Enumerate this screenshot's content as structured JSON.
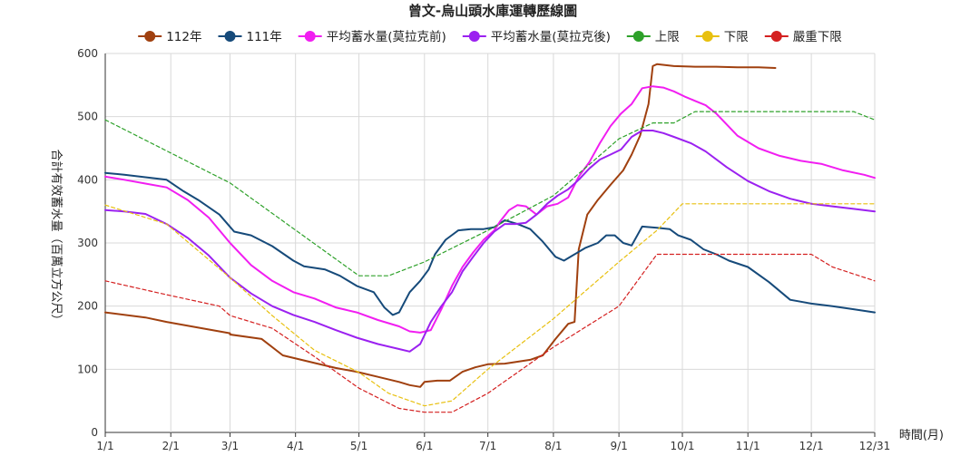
{
  "chart_data": {
    "type": "line",
    "title": "曾文-烏山頭水庫運轉歷線圖",
    "ylabel": "合計有效蓄水量（百萬立方公尺）",
    "xlabel": "時間(月)",
    "ylim": [
      0,
      600
    ],
    "yticks": [
      0,
      100,
      200,
      300,
      400,
      500,
      600
    ],
    "xlim": [
      1,
      365
    ],
    "xticks": [
      {
        "label": "1/1",
        "day": 1
      },
      {
        "label": "2/1",
        "day": 32
      },
      {
        "label": "3/1",
        "day": 60
      },
      {
        "label": "4/1",
        "day": 91
      },
      {
        "label": "5/1",
        "day": 121
      },
      {
        "label": "6/1",
        "day": 152
      },
      {
        "label": "7/1",
        "day": 182
      },
      {
        "label": "8/1",
        "day": 213
      },
      {
        "label": "9/1",
        "day": 244
      },
      {
        "label": "10/1",
        "day": 274
      },
      {
        "label": "11/1",
        "day": 305
      },
      {
        "label": "12/1",
        "day": 335
      },
      {
        "label": "12/31",
        "day": 365
      }
    ],
    "grid": true,
    "legend_position": "top",
    "series": [
      {
        "name": "112年",
        "color": "#a0400f",
        "style": "solid",
        "width": 2,
        "points": [
          [
            1,
            190
          ],
          [
            20,
            182
          ],
          [
            30,
            175
          ],
          [
            45,
            166
          ],
          [
            60,
            157
          ],
          [
            60,
            155
          ],
          [
            75,
            148
          ],
          [
            85,
            122
          ],
          [
            100,
            110
          ],
          [
            110,
            102
          ],
          [
            120,
            96
          ],
          [
            130,
            88
          ],
          [
            140,
            80
          ],
          [
            145,
            75
          ],
          [
            150,
            72
          ],
          [
            152,
            80
          ],
          [
            158,
            82
          ],
          [
            164,
            82
          ],
          [
            170,
            96
          ],
          [
            176,
            103
          ],
          [
            182,
            108
          ],
          [
            190,
            109
          ],
          [
            196,
            112
          ],
          [
            202,
            115
          ],
          [
            208,
            122
          ],
          [
            214,
            148
          ],
          [
            220,
            172
          ],
          [
            223,
            175
          ],
          [
            225,
            290
          ],
          [
            229,
            345
          ],
          [
            234,
            368
          ],
          [
            240,
            392
          ],
          [
            246,
            415
          ],
          [
            250,
            440
          ],
          [
            254,
            470
          ],
          [
            258,
            520
          ],
          [
            260,
            580
          ],
          [
            262,
            583
          ],
          [
            270,
            580
          ],
          [
            280,
            579
          ],
          [
            290,
            579
          ],
          [
            300,
            578
          ],
          [
            310,
            578
          ],
          [
            318,
            577
          ]
        ]
      },
      {
        "name": "111年",
        "color": "#164a7a",
        "style": "solid",
        "width": 2,
        "points": [
          [
            1,
            411
          ],
          [
            10,
            408
          ],
          [
            20,
            404
          ],
          [
            30,
            400
          ],
          [
            38,
            382
          ],
          [
            45,
            368
          ],
          [
            55,
            345
          ],
          [
            62,
            318
          ],
          [
            70,
            312
          ],
          [
            80,
            295
          ],
          [
            90,
            272
          ],
          [
            95,
            263
          ],
          [
            105,
            258
          ],
          [
            112,
            248
          ],
          [
            120,
            232
          ],
          [
            128,
            222
          ],
          [
            133,
            198
          ],
          [
            137,
            186
          ],
          [
            140,
            190
          ],
          [
            145,
            222
          ],
          [
            150,
            240
          ],
          [
            154,
            258
          ],
          [
            157,
            282
          ],
          [
            162,
            305
          ],
          [
            168,
            320
          ],
          [
            174,
            322
          ],
          [
            180,
            322
          ],
          [
            185,
            325
          ],
          [
            190,
            336
          ],
          [
            196,
            330
          ],
          [
            202,
            322
          ],
          [
            208,
            302
          ],
          [
            214,
            278
          ],
          [
            218,
            272
          ],
          [
            222,
            280
          ],
          [
            228,
            292
          ],
          [
            234,
            300
          ],
          [
            238,
            312
          ],
          [
            242,
            312
          ],
          [
            246,
            300
          ],
          [
            250,
            296
          ],
          [
            255,
            326
          ],
          [
            262,
            324
          ],
          [
            268,
            322
          ],
          [
            272,
            312
          ],
          [
            278,
            305
          ],
          [
            284,
            290
          ],
          [
            290,
            282
          ],
          [
            296,
            272
          ],
          [
            305,
            262
          ],
          [
            315,
            238
          ],
          [
            325,
            210
          ],
          [
            335,
            204
          ],
          [
            345,
            200
          ],
          [
            355,
            195
          ],
          [
            365,
            190
          ]
        ]
      },
      {
        "name": "平均蓄水量(莫拉克前)",
        "color": "#f11ef1",
        "style": "solid",
        "width": 2,
        "points": [
          [
            1,
            405
          ],
          [
            10,
            400
          ],
          [
            20,
            394
          ],
          [
            30,
            388
          ],
          [
            40,
            368
          ],
          [
            50,
            340
          ],
          [
            60,
            300
          ],
          [
            70,
            265
          ],
          [
            80,
            240
          ],
          [
            90,
            222
          ],
          [
            100,
            212
          ],
          [
            110,
            198
          ],
          [
            120,
            190
          ],
          [
            130,
            178
          ],
          [
            140,
            168
          ],
          [
            145,
            160
          ],
          [
            150,
            158
          ],
          [
            155,
            162
          ],
          [
            160,
            195
          ],
          [
            165,
            232
          ],
          [
            170,
            262
          ],
          [
            175,
            285
          ],
          [
            180,
            305
          ],
          [
            185,
            320
          ],
          [
            188,
            335
          ],
          [
            192,
            352
          ],
          [
            196,
            360
          ],
          [
            200,
            358
          ],
          [
            205,
            345
          ],
          [
            210,
            358
          ],
          [
            215,
            362
          ],
          [
            220,
            372
          ],
          [
            225,
            405
          ],
          [
            230,
            428
          ],
          [
            235,
            458
          ],
          [
            240,
            485
          ],
          [
            245,
            505
          ],
          [
            250,
            520
          ],
          [
            255,
            545
          ],
          [
            260,
            548
          ],
          [
            265,
            546
          ],
          [
            270,
            540
          ],
          [
            275,
            532
          ],
          [
            280,
            525
          ],
          [
            285,
            518
          ],
          [
            290,
            505
          ],
          [
            300,
            470
          ],
          [
            310,
            450
          ],
          [
            320,
            438
          ],
          [
            330,
            430
          ],
          [
            340,
            425
          ],
          [
            350,
            415
          ],
          [
            360,
            408
          ],
          [
            365,
            403
          ]
        ]
      },
      {
        "name": "平均蓄水量(莫拉克後)",
        "color": "#9b21f0",
        "style": "solid",
        "width": 2,
        "points": [
          [
            1,
            352
          ],
          [
            10,
            350
          ],
          [
            20,
            346
          ],
          [
            30,
            330
          ],
          [
            40,
            308
          ],
          [
            50,
            280
          ],
          [
            60,
            245
          ],
          [
            70,
            220
          ],
          [
            80,
            200
          ],
          [
            90,
            186
          ],
          [
            100,
            175
          ],
          [
            110,
            162
          ],
          [
            120,
            150
          ],
          [
            130,
            140
          ],
          [
            140,
            132
          ],
          [
            145,
            128
          ],
          [
            150,
            140
          ],
          [
            155,
            175
          ],
          [
            160,
            200
          ],
          [
            165,
            222
          ],
          [
            170,
            255
          ],
          [
            175,
            278
          ],
          [
            180,
            300
          ],
          [
            185,
            318
          ],
          [
            190,
            330
          ],
          [
            195,
            330
          ],
          [
            200,
            332
          ],
          [
            205,
            345
          ],
          [
            210,
            362
          ],
          [
            215,
            375
          ],
          [
            220,
            385
          ],
          [
            225,
            400
          ],
          [
            230,
            418
          ],
          [
            235,
            432
          ],
          [
            240,
            440
          ],
          [
            245,
            448
          ],
          [
            250,
            468
          ],
          [
            255,
            478
          ],
          [
            260,
            478
          ],
          [
            265,
            474
          ],
          [
            270,
            468
          ],
          [
            278,
            458
          ],
          [
            285,
            445
          ],
          [
            295,
            420
          ],
          [
            305,
            398
          ],
          [
            315,
            382
          ],
          [
            325,
            370
          ],
          [
            335,
            362
          ],
          [
            345,
            358
          ],
          [
            355,
            354
          ],
          [
            365,
            350
          ]
        ]
      },
      {
        "name": "上限",
        "color": "#2ea12a",
        "style": "dashed",
        "width": 1.2,
        "points": [
          [
            1,
            495
          ],
          [
            60,
            395
          ],
          [
            121,
            248
          ],
          [
            135,
            248
          ],
          [
            152,
            270
          ],
          [
            182,
            320
          ],
          [
            213,
            375
          ],
          [
            244,
            465
          ],
          [
            260,
            490
          ],
          [
            270,
            490
          ],
          [
            280,
            508
          ],
          [
            340,
            508
          ],
          [
            355,
            508
          ],
          [
            365,
            495
          ]
        ]
      },
      {
        "name": "下限",
        "color": "#e8c00f",
        "style": "dashed",
        "width": 1.2,
        "points": [
          [
            1,
            360
          ],
          [
            30,
            330
          ],
          [
            60,
            245
          ],
          [
            80,
            185
          ],
          [
            100,
            130
          ],
          [
            121,
            95
          ],
          [
            135,
            62
          ],
          [
            152,
            42
          ],
          [
            165,
            50
          ],
          [
            182,
            100
          ],
          [
            213,
            180
          ],
          [
            244,
            270
          ],
          [
            262,
            320
          ],
          [
            274,
            362
          ],
          [
            335,
            362
          ],
          [
            365,
            362
          ]
        ]
      },
      {
        "name": "嚴重下限",
        "color": "#d42020",
        "style": "dashed",
        "width": 1.2,
        "points": [
          [
            1,
            240
          ],
          [
            30,
            218
          ],
          [
            55,
            200
          ],
          [
            60,
            185
          ],
          [
            80,
            165
          ],
          [
            100,
            120
          ],
          [
            121,
            70
          ],
          [
            140,
            38
          ],
          [
            152,
            32
          ],
          [
            165,
            32
          ],
          [
            182,
            62
          ],
          [
            213,
            135
          ],
          [
            244,
            200
          ],
          [
            262,
            282
          ],
          [
            274,
            282
          ],
          [
            335,
            282
          ],
          [
            345,
            262
          ],
          [
            365,
            240
          ]
        ]
      }
    ]
  }
}
